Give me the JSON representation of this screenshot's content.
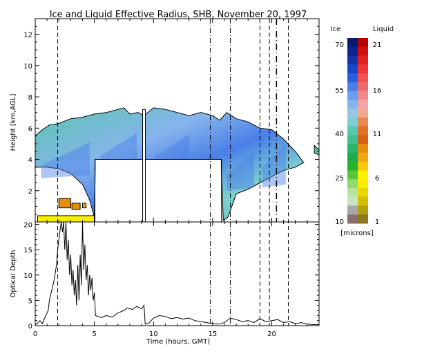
{
  "chart_data": [
    {
      "type": "heatmap",
      "title": "Ice and Liquid Effective Radius, SHB, November 20, 1997",
      "ylabel": "Height [km,AGL]",
      "xlim": [
        0,
        24
      ],
      "ylim": [
        0,
        13
      ],
      "x_ticks": [
        "0",
        "5",
        "10",
        "15",
        "20"
      ],
      "y_ticks": [
        "2",
        "4",
        "6",
        "8",
        "10",
        "12"
      ],
      "grid": false,
      "ice_cloud": {
        "top_km": [
          [
            0.0,
            5.5
          ],
          [
            0.6,
            5.9
          ],
          [
            1.2,
            6.2
          ],
          [
            2.0,
            6.3
          ],
          [
            3.0,
            6.6
          ],
          [
            4.0,
            6.7
          ],
          [
            5.0,
            6.9
          ],
          [
            6.0,
            7.0
          ],
          [
            7.0,
            7.2
          ],
          [
            7.5,
            7.3
          ],
          [
            8.0,
            6.9
          ],
          [
            8.7,
            7.0
          ],
          [
            9.2,
            6.8
          ],
          [
            10.0,
            7.3
          ],
          [
            11.0,
            7.2
          ],
          [
            12.0,
            7.0
          ],
          [
            13.0,
            6.8
          ],
          [
            14.0,
            7.0
          ],
          [
            15.0,
            6.8
          ],
          [
            15.6,
            6.5
          ],
          [
            16.2,
            7.0
          ],
          [
            17.0,
            6.6
          ],
          [
            18.0,
            6.4
          ],
          [
            19.0,
            6.0
          ],
          [
            20.0,
            5.9
          ],
          [
            21.0,
            5.3
          ],
          [
            22.0,
            4.5
          ],
          [
            22.7,
            3.8
          ]
        ],
        "base_km": [
          [
            0.0,
            3.5
          ],
          [
            1.0,
            3.5
          ],
          [
            2.0,
            3.4
          ],
          [
            3.0,
            3.1
          ],
          [
            4.0,
            2.4
          ],
          [
            4.6,
            1.4
          ],
          [
            5.0,
            0.3
          ],
          [
            5.1,
            4.0
          ],
          [
            15.7,
            4.0
          ],
          [
            15.9,
            0.1
          ],
          [
            16.3,
            0.3
          ],
          [
            17.0,
            1.8
          ],
          [
            18.0,
            2.1
          ],
          [
            19.0,
            2.5
          ],
          [
            20.0,
            2.9
          ],
          [
            21.0,
            3.3
          ],
          [
            22.0,
            3.5
          ],
          [
            22.7,
            3.8
          ]
        ],
        "gap_near_hour": 9.2,
        "isolated_patch": {
          "hours": [
            23.6,
            24.0
          ],
          "top_km": 4.9,
          "base_km": 4.3
        }
      },
      "liquid_cloud": {
        "layers": [
          {
            "hours": [
              2.0,
              3.0
            ],
            "height_km": [
              0.9,
              1.5
            ],
            "radius_microns": 9
          },
          {
            "hours": [
              3.1,
              3.8
            ],
            "height_km": [
              0.8,
              1.2
            ],
            "radius_microns": 9
          },
          {
            "hours": [
              4.0,
              4.3
            ],
            "height_km": [
              0.9,
              1.2
            ],
            "radius_microns": 8
          },
          {
            "hours": [
              0.2,
              5.0
            ],
            "height_km": [
              0.0,
              0.4
            ],
            "radius_microns": 5
          }
        ]
      },
      "colorbar": {
        "ice_label": "Ice",
        "liquid_label": "Liquid",
        "units": "[microns]",
        "ice_ticks": [
          "70",
          "55",
          "40",
          "25",
          "10"
        ],
        "liquid_ticks": [
          "21",
          "16",
          "11",
          "6",
          "1"
        ],
        "ice_colors": [
          "#0a1a6e",
          "#10238a",
          "#1532a8",
          "#1a45c8",
          "#2a5ee0",
          "#4a7ee8",
          "#6a9ef0",
          "#86b4ec",
          "#98c6e6",
          "#7ccfd2",
          "#5cc6b0",
          "#42be90",
          "#2ab46a",
          "#1eaa48",
          "#28b428",
          "#58c838",
          "#90d870",
          "#b8e4a0",
          "#c8e4c0",
          "#a8a8a8",
          "#8c6e6e"
        ],
        "liquid_colors": [
          "#b40000",
          "#d01010",
          "#e02020",
          "#ee3434",
          "#f05050",
          "#f06c6c",
          "#f08a8a",
          "#f4a4a4",
          "#f0a890",
          "#e88850",
          "#e07028",
          "#d86018",
          "#e88c10",
          "#f0a810",
          "#f8c810",
          "#fff000",
          "#f8f000",
          "#e8d800",
          "#d0c000",
          "#b0a010",
          "#8c7820"
        ]
      }
    },
    {
      "type": "line",
      "xlabel": "Time (hours, GMT)",
      "ylabel": "Optical Depth",
      "xlim": [
        0,
        24
      ],
      "ylim": [
        0,
        20.5
      ],
      "x_ticks": [
        "0",
        "5",
        "10",
        "15",
        "20"
      ],
      "y_ticks": [
        "0",
        "5",
        "10",
        "15",
        "20"
      ],
      "series": [
        {
          "x": [
            0.0,
            0.2,
            0.4,
            0.6,
            0.8,
            1.0,
            1.1,
            1.2,
            1.4,
            1.6,
            1.8,
            1.9,
            2.0,
            2.1,
            2.2,
            2.3,
            2.4,
            2.5,
            2.6,
            2.7,
            2.8,
            2.9,
            3.0,
            3.1,
            3.2,
            3.3,
            3.4,
            3.5,
            3.6,
            3.7,
            3.8,
            3.9,
            4.0,
            4.1,
            4.2,
            4.3,
            4.4,
            4.5,
            4.6,
            4.7,
            4.8,
            4.9,
            5.0,
            5.1,
            5.3,
            5.6,
            6.0,
            6.5,
            7.0,
            7.5,
            7.8,
            8.2,
            8.6,
            9.0,
            9.2,
            9.3,
            9.6,
            10.0,
            10.5,
            11.0,
            11.5,
            12.0,
            12.5,
            13.0,
            13.5,
            14.0,
            14.5,
            15.0,
            15.5,
            16.0,
            16.5,
            17.0,
            17.5,
            18.0,
            18.5,
            19.0,
            19.5,
            20.0,
            20.5,
            21.0,
            21.5,
            22.0,
            22.5,
            23.0,
            23.5,
            24.0
          ],
          "y": [
            0.2,
            0.5,
            1.0,
            0.4,
            1.5,
            2.5,
            3.0,
            5.0,
            7.0,
            9.0,
            12.0,
            15.0,
            17.0,
            19.0,
            20.5,
            18.5,
            20.5,
            15.0,
            20.5,
            13.0,
            17.0,
            10.0,
            14.0,
            8.0,
            11.0,
            6.0,
            9.0,
            4.0,
            12.0,
            5.0,
            14.0,
            8.0,
            20.5,
            11.0,
            16.0,
            9.0,
            12.0,
            6.0,
            10.0,
            7.0,
            9.5,
            5.0,
            6.5,
            2.0,
            1.8,
            1.6,
            2.0,
            1.7,
            2.5,
            3.0,
            3.5,
            3.2,
            3.8,
            3.3,
            4.0,
            0.3,
            0.5,
            1.5,
            2.0,
            1.8,
            1.4,
            1.6,
            1.3,
            1.5,
            1.0,
            0.8,
            0.6,
            0.4,
            0.3,
            0.6,
            1.5,
            1.2,
            0.8,
            1.0,
            0.6,
            1.4,
            0.8,
            1.0,
            1.2,
            0.6,
            0.8,
            0.4,
            0.6,
            0.3,
            0.2,
            0.2
          ]
        }
      ]
    }
  ],
  "event_markers": {
    "dashed_hours": [
      1.9,
      19.0,
      19.8,
      21.4
    ],
    "dash_dot_hours": [
      14.8,
      16.5
    ],
    "dash_dot_upper_only_hours": [
      20.4
    ]
  }
}
